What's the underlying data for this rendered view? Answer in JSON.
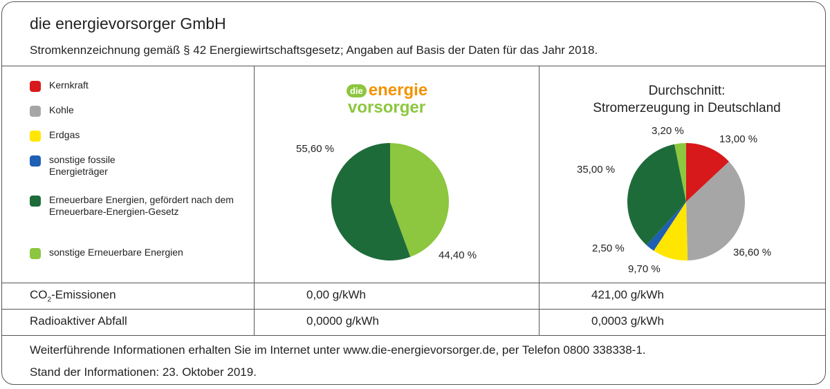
{
  "header": {
    "company": "die energievorsorger GmbH",
    "subtitle": "Stromkennzeichnung gemäß § 42 Energiewirtschaftsgesetz; Angaben auf Basis der Daten für das Jahr 2018."
  },
  "colors": {
    "kernkraft": "#d7191c",
    "kohle": "#a6a6a6",
    "erdgas": "#ffe600",
    "fossil": "#1f5fb4",
    "eeg": "#1e6b3a",
    "sonstige_ee": "#8dc63f",
    "brand_orange": "#f39200",
    "brand_green": "#8cc63f"
  },
  "legend": [
    {
      "label": "Kernkraft",
      "color": "#d7191c"
    },
    {
      "label": "Kohle",
      "color": "#a6a6a6"
    },
    {
      "label": "Erdgas",
      "color": "#ffe600"
    },
    {
      "label": "sonstige fossile Energieträger",
      "color": "#1f5fb4"
    },
    {
      "label": "Erneuerbare Energien, gefördert nach dem Erneuerbare-Energien-Gesetz",
      "color": "#1e6b3a"
    },
    {
      "label": "sonstige Erneuerbare Energien",
      "color": "#8dc63f"
    }
  ],
  "brand": {
    "badge": "die",
    "word1": "energie",
    "word2": "vorsorger"
  },
  "average_title": {
    "line1": "Durchschnitt:",
    "line2": "Stromerzeugung in Deutschland"
  },
  "chart_data": [
    {
      "type": "pie",
      "title": "",
      "slices": [
        {
          "name": "sonstige Erneuerbare Energien",
          "value": 44.4,
          "label": "44,40 %",
          "color": "#8dc63f"
        },
        {
          "name": "Erneuerbare Energien, gefördert nach dem Erneuerbare-Energien-Gesetz",
          "value": 55.6,
          "label": "55,60 %",
          "color": "#1e6b3a"
        }
      ]
    },
    {
      "type": "pie",
      "title": "Durchschnitt: Stromerzeugung in Deutschland",
      "slices": [
        {
          "name": "Kernkraft",
          "value": 13.0,
          "label": "13,00 %",
          "color": "#d7191c"
        },
        {
          "name": "Kohle",
          "value": 36.6,
          "label": "36,60 %",
          "color": "#a6a6a6"
        },
        {
          "name": "Erdgas",
          "value": 9.7,
          "label": "9,70 %",
          "color": "#ffe600"
        },
        {
          "name": "sonstige fossile Energieträger",
          "value": 2.5,
          "label": "2,50 %",
          "color": "#1f5fb4"
        },
        {
          "name": "Erneuerbare Energien, gefördert nach dem Erneuerbare-Energien-Gesetz",
          "value": 35.0,
          "label": "35,00 %",
          "color": "#1e6b3a"
        },
        {
          "name": "sonstige Erneuerbare Energien",
          "value": 3.2,
          "label": "3,20 %",
          "color": "#8dc63f"
        }
      ]
    }
  ],
  "rows": {
    "co2": {
      "label_prefix": "CO",
      "label_sub": "2",
      "label_suffix": "-Emissionen",
      "own": "0,00 g/kWh",
      "avg": "421,00 g/kWh"
    },
    "waste": {
      "label": "Radioaktiver Abfall",
      "own": "0,0000 g/kWh",
      "avg": "0,0003 g/kWh"
    }
  },
  "footer": {
    "line1": "Weiterführende Informationen erhalten Sie im Internet unter www.die-energievorsorger.de, per Telefon 0800 338338-1.",
    "line2": "Stand der Informationen: 23. Oktober 2019."
  }
}
